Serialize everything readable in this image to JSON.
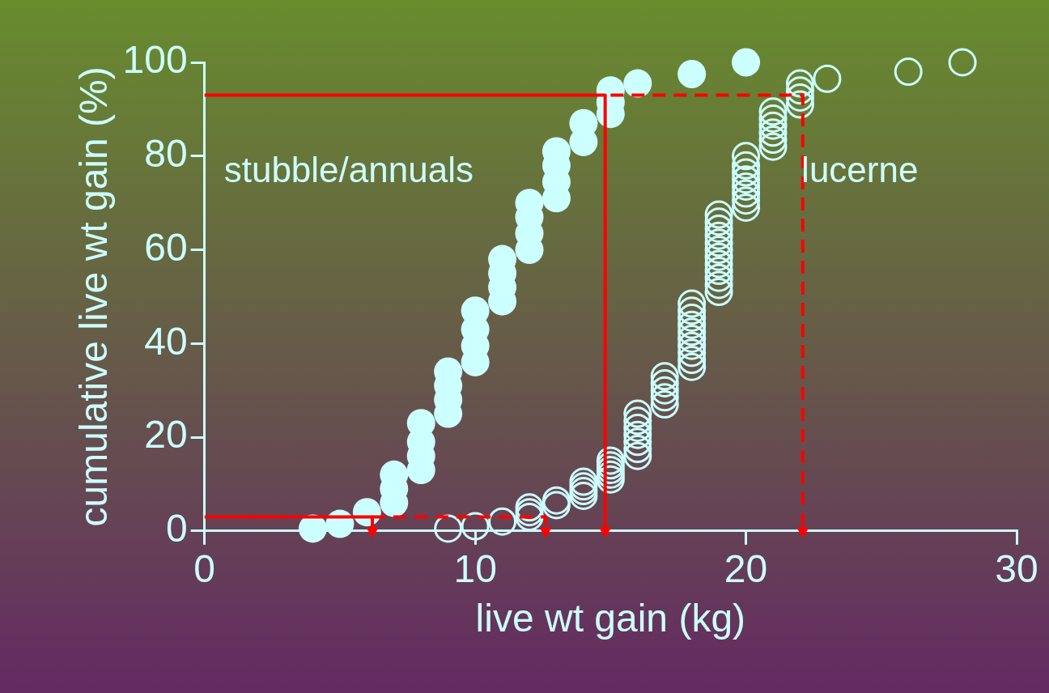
{
  "chart_data": {
    "type": "scatter",
    "xlabel": "live wt gain (kg)",
    "ylabel": "cumulative live wt gain (%)",
    "xlim": [
      0,
      30
    ],
    "xticks": [
      0,
      10,
      20,
      30
    ],
    "ylim": [
      0,
      100
    ],
    "yticks": [
      0,
      20,
      40,
      60,
      80,
      100
    ],
    "grid": false,
    "legend": "top",
    "marker": "circle",
    "series": [
      {
        "name": "stubble/annuals",
        "color": "#ccffff",
        "x": [
          4,
          5,
          6,
          7,
          7,
          7,
          8,
          8,
          8,
          8,
          9,
          9,
          9,
          9,
          10,
          10,
          10,
          10,
          11,
          11,
          11,
          11,
          12,
          12,
          12,
          12,
          13,
          13,
          13,
          13,
          14,
          14,
          15,
          15,
          15,
          16,
          18,
          20
        ],
        "values": [
          0.5,
          1.5,
          4,
          6,
          9,
          12,
          13,
          16,
          19,
          23,
          25,
          28,
          31,
          34,
          36,
          39.5,
          43,
          47,
          49,
          52,
          55,
          58,
          60,
          63.5,
          67,
          70,
          71,
          74.5,
          78,
          81,
          83,
          87,
          89,
          91.5,
          94,
          95.5,
          97.5,
          100
        ]
      },
      {
        "name": "lucerne",
        "color": "#ccffff",
        "x": [
          9,
          10,
          11,
          12,
          12,
          12,
          13,
          13,
          14,
          14,
          14,
          14,
          15,
          15,
          15,
          15,
          15,
          16,
          16,
          16,
          16,
          16,
          16,
          16,
          17,
          17,
          17,
          17,
          17,
          18,
          18,
          18,
          18,
          18,
          18,
          18,
          18,
          18,
          18,
          19,
          19,
          19,
          19,
          19,
          19,
          19,
          19,
          19,
          19,
          19,
          19,
          20,
          20,
          20,
          20,
          20,
          20,
          20,
          20,
          21,
          21,
          21,
          21,
          21,
          21,
          22,
          22,
          22,
          22,
          23,
          26,
          28
        ],
        "values": [
          0.5,
          1,
          2,
          3,
          4,
          5,
          5.5,
          6.5,
          7.5,
          8.5,
          9.5,
          10.5,
          11,
          12,
          13,
          14,
          15,
          16,
          17.5,
          19,
          20.5,
          22,
          23.5,
          25,
          27,
          28.5,
          30,
          31.5,
          33,
          35,
          36.5,
          38,
          39.5,
          41,
          42.5,
          44,
          45.5,
          47,
          48.5,
          51,
          52.5,
          54,
          55.5,
          57,
          58.5,
          60,
          61.5,
          63,
          64.5,
          66,
          67.5,
          69,
          70.5,
          72,
          73.5,
          75,
          76.5,
          78,
          80,
          82,
          83.5,
          85,
          86.5,
          88,
          89.5,
          91,
          92.5,
          94,
          95.5,
          96.5,
          98,
          100
        ]
      },
      {
        "type": "line",
        "color": "#ff0000",
        "line_style": "solid",
        "marker": "none",
        "x": [
          0,
          14.8,
          14.8
        ],
        "values": [
          93,
          93,
          0
        ]
      },
      {
        "type": "line",
        "color": "#ff0000",
        "line_style": "dashed",
        "marker": "none",
        "x": [
          15,
          22.1,
          22.1
        ],
        "values": [
          93,
          93,
          0
        ]
      },
      {
        "type": "line",
        "color": "#ff0000",
        "line_style": "solid",
        "marker": "none",
        "x": [
          0,
          6.2,
          6.2
        ],
        "values": [
          3,
          3,
          0
        ]
      },
      {
        "type": "line",
        "color": "#ff0000",
        "line_style": "dashed",
        "marker": "none",
        "x": [
          6.2,
          12.6,
          12.6
        ],
        "values": [
          3,
          3,
          0
        ]
      }
    ]
  }
}
